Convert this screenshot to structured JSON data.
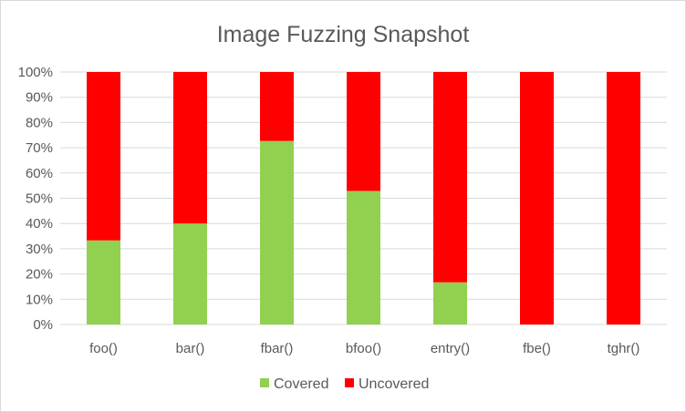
{
  "chart_data": {
    "type": "bar",
    "stacked": "percent",
    "title": "Image Fuzzing Snapshot",
    "categories": [
      "foo()",
      "bar()",
      "fbar()",
      "bfoo()",
      "entry()",
      "fbe()",
      "tghr()"
    ],
    "series": [
      {
        "name": "Covered",
        "color": "#92D050",
        "values": [
          33.3,
          40,
          72.7,
          52.9,
          16.7,
          0,
          0
        ]
      },
      {
        "name": "Uncovered",
        "color": "#FF0000",
        "values": [
          66.7,
          60,
          27.3,
          47.1,
          83.3,
          100,
          100
        ]
      }
    ],
    "ylim": [
      0,
      100
    ],
    "yticks": [
      "0%",
      "10%",
      "20%",
      "30%",
      "40%",
      "50%",
      "60%",
      "70%",
      "80%",
      "90%",
      "100%"
    ],
    "grid": true,
    "legend": "bottom",
    "colors": {
      "gridline": "#d9d9d9",
      "text": "#595959",
      "border": "#d9d9d9"
    }
  }
}
